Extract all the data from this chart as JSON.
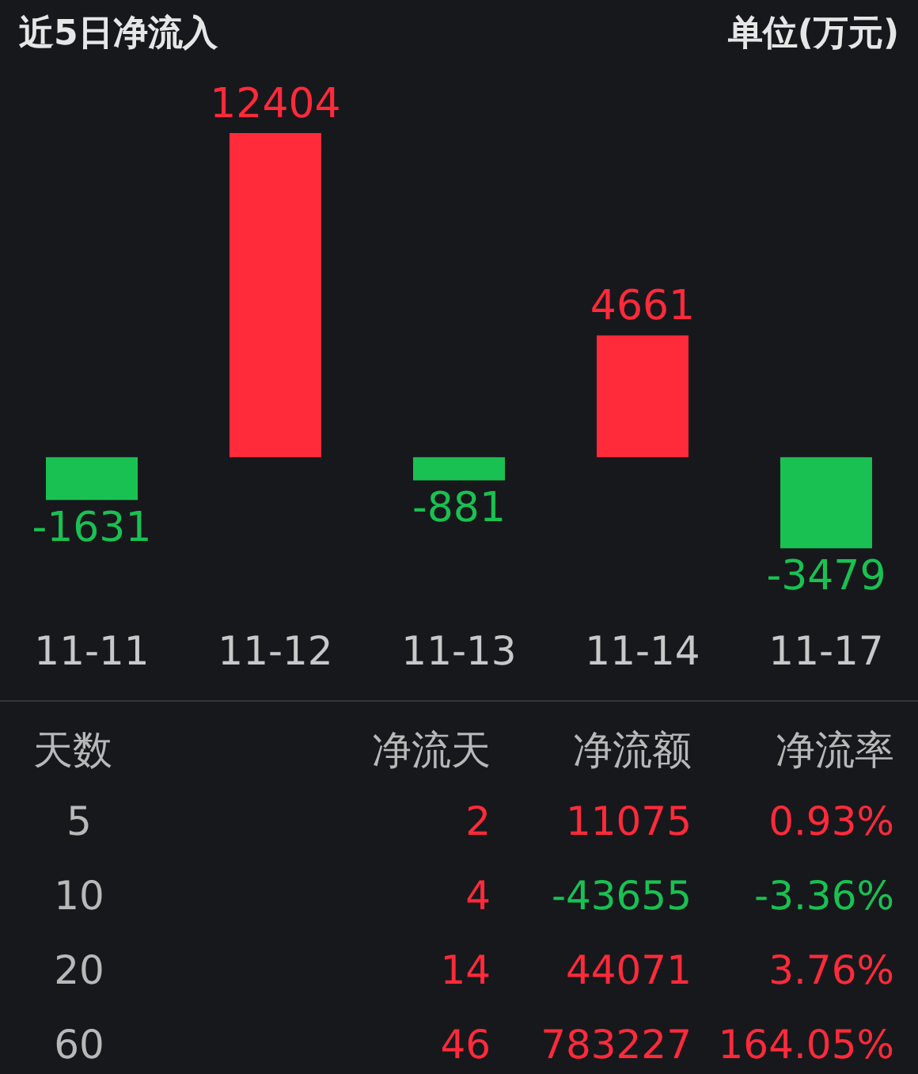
{
  "chart_data": [
    {
      "type": "bar",
      "title": "近5日净流入",
      "subtitle": "单位(万元)",
      "categories": [
        "11-11",
        "11-12",
        "11-13",
        "11-14",
        "11-17"
      ],
      "values": [
        -1631,
        12404,
        -881,
        4661,
        -3479
      ],
      "colors": [
        "#19c152",
        "#ff2a3a",
        "#19c152",
        "#ff2a3a",
        "#19c152"
      ],
      "data_labels": true,
      "legend": false,
      "tick_labels": "x"
    },
    {
      "type": "other",
      "categories": [
        "天数",
        "净流天",
        "净流额",
        "净流率"
      ],
      "annotations": [
        "5",
        "2",
        "11075",
        "0.93%",
        "10",
        "4",
        "-43655",
        "-3.36%",
        "20",
        "14",
        "44071",
        "3.76%",
        "60",
        "46",
        "783227",
        "164.05%"
      ],
      "colors": [
        "#b8b8b8",
        "#ff2a3a",
        "#ff2a3a",
        "#ff2a3a",
        "#b8b8b8",
        "#ff2a3a",
        "#19c152",
        "#19c152",
        "#b8b8b8",
        "#ff2a3a",
        "#ff2a3a",
        "#ff2a3a",
        "#b8b8b8",
        "#ff2a3a",
        "#ff2a3a",
        "#ff2a3a"
      ]
    }
  ]
}
